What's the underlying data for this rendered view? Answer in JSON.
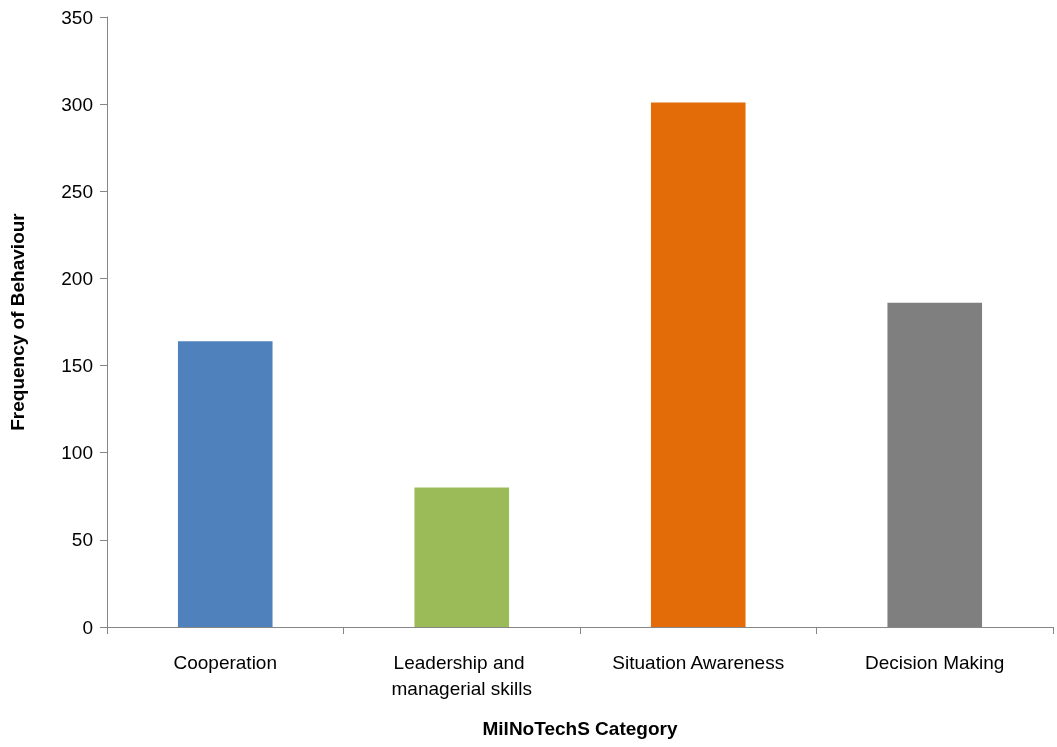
{
  "chart_data": {
    "type": "bar",
    "xlabel": "MilNoTechS Category",
    "ylabel": "Frequency of Behaviour",
    "categories": [
      "Cooperation",
      "Leadership and managerial skills",
      "Situation Awareness",
      "Decision Making"
    ],
    "values": [
      164,
      80,
      301,
      186
    ],
    "colors": [
      "#4f81bd",
      "#9bbb59",
      "#e36c09",
      "#7f7f7f"
    ],
    "ylim": [
      0,
      350
    ],
    "yticks": [
      0,
      50,
      100,
      150,
      200,
      250,
      300,
      350
    ],
    "grid": false
  }
}
